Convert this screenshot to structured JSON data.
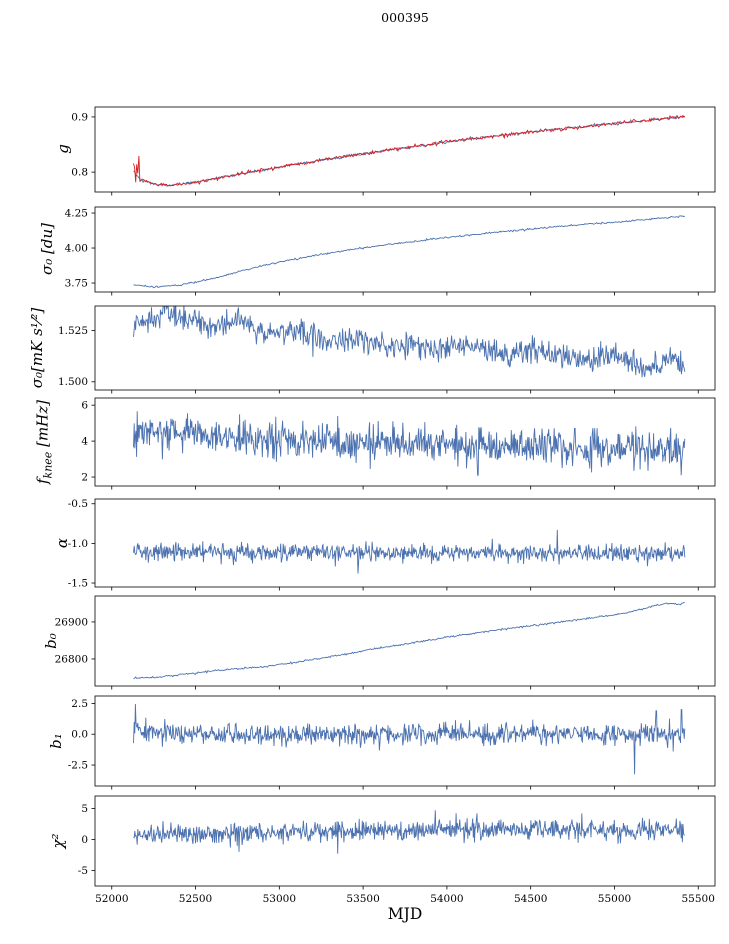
{
  "figure": {
    "title": "000395"
  },
  "x_axis": {
    "label": "MJD",
    "lim": [
      51900,
      55600
    ],
    "tick_vals": [
      52000,
      52500,
      53000,
      53500,
      54000,
      54500,
      55000,
      55500
    ],
    "tick_labels": [
      "52000",
      "52500",
      "53000",
      "53500",
      "54000",
      "54500",
      "55000",
      "55500"
    ]
  },
  "colors": {
    "line": "#4c72b0",
    "fit": "#d62222",
    "axis": "#000000"
  },
  "chart_data": [
    {
      "type": "line",
      "name": "g",
      "ylabel": "g",
      "ylim": [
        0.764,
        0.918
      ],
      "ytick_vals": [
        0.8,
        0.9
      ],
      "ytick_labels": [
        "0.8",
        "0.9"
      ],
      "x_range": [
        52130,
        55420
      ],
      "series": [
        {
          "name": "g-gain",
          "color": "#4c72b0",
          "noise": 0.0012,
          "points": 520,
          "trend": [
            [
              52130,
              0.801
            ],
            [
              52170,
              0.7875
            ],
            [
              52230,
              0.7795
            ],
            [
              52330,
              0.776
            ],
            [
              52480,
              0.7805
            ],
            [
              52650,
              0.7905
            ],
            [
              52850,
              0.801
            ],
            [
              53050,
              0.8115
            ],
            [
              53250,
              0.8215
            ],
            [
              53450,
              0.831
            ],
            [
              53650,
              0.84
            ],
            [
              53850,
              0.8485
            ],
            [
              54050,
              0.8565
            ],
            [
              54250,
              0.864
            ],
            [
              54450,
              0.871
            ],
            [
              54650,
              0.8775
            ],
            [
              54850,
              0.8835
            ],
            [
              55050,
              0.8895
            ],
            [
              55250,
              0.8955
            ],
            [
              55420,
              0.9015
            ]
          ]
        },
        {
          "name": "g-fit",
          "color": "#d62222",
          "noise": 0.0016,
          "points": 520,
          "head": {
            "n": 7,
            "amp": 0.027
          },
          "trend": [
            [
              52130,
              0.801
            ],
            [
              52170,
              0.7875
            ],
            [
              52230,
              0.7795
            ],
            [
              52330,
              0.776
            ],
            [
              52480,
              0.7805
            ],
            [
              52650,
              0.7905
            ],
            [
              52850,
              0.801
            ],
            [
              53050,
              0.8115
            ],
            [
              53250,
              0.8215
            ],
            [
              53450,
              0.831
            ],
            [
              53650,
              0.84
            ],
            [
              53850,
              0.8485
            ],
            [
              54050,
              0.8565
            ],
            [
              54250,
              0.864
            ],
            [
              54450,
              0.871
            ],
            [
              54650,
              0.8775
            ],
            [
              54850,
              0.8835
            ],
            [
              55050,
              0.8895
            ],
            [
              55250,
              0.8955
            ],
            [
              55420,
              0.9015
            ]
          ]
        }
      ]
    },
    {
      "type": "line",
      "name": "sigma0-du",
      "ylabel": "σ₀ [du]",
      "ylim": [
        3.686,
        4.293
      ],
      "ytick_vals": [
        3.75,
        4.0,
        4.25
      ],
      "ytick_labels": [
        "3.75",
        "4.00",
        "4.25"
      ],
      "x_range": [
        52130,
        55420
      ],
      "series": [
        {
          "name": "sigma0-du",
          "color": "#4c72b0",
          "noise": 0.003,
          "points": 520,
          "trend": [
            [
              52130,
              3.737
            ],
            [
              52250,
              3.721
            ],
            [
              52400,
              3.734
            ],
            [
              52600,
              3.78
            ],
            [
              52800,
              3.845
            ],
            [
              53000,
              3.9
            ],
            [
              53250,
              3.955
            ],
            [
              53500,
              4.0
            ],
            [
              53750,
              4.04
            ],
            [
              54000,
              4.075
            ],
            [
              54250,
              4.107
            ],
            [
              54500,
              4.135
            ],
            [
              54750,
              4.162
            ],
            [
              55000,
              4.185
            ],
            [
              55200,
              4.205
            ],
            [
              55350,
              4.222
            ],
            [
              55420,
              4.228
            ]
          ]
        }
      ]
    },
    {
      "type": "line",
      "name": "sigma0-mk",
      "ylabel": "σ₀[mK s¹⁄²]",
      "ylim": [
        1.496,
        1.537
      ],
      "ytick_vals": [
        1.5,
        1.525
      ],
      "ytick_labels": [
        "1.500",
        "1.525"
      ],
      "x_range": [
        52130,
        55420
      ],
      "series": [
        {
          "name": "sigma0-mk",
          "color": "#4c72b0",
          "noise": 0.0032,
          "points": 800,
          "trend": [
            [
              52130,
              1.5265
            ],
            [
              52220,
              1.531
            ],
            [
              52320,
              1.5335
            ],
            [
              52450,
              1.53
            ],
            [
              52600,
              1.5275
            ],
            [
              52750,
              1.53
            ],
            [
              52900,
              1.524
            ],
            [
              53050,
              1.526
            ],
            [
              53200,
              1.5215
            ],
            [
              53350,
              1.519
            ],
            [
              53500,
              1.5215
            ],
            [
              53650,
              1.517
            ],
            [
              53800,
              1.5185
            ],
            [
              53950,
              1.5155
            ],
            [
              54100,
              1.518
            ],
            [
              54250,
              1.5145
            ],
            [
              54400,
              1.5125
            ],
            [
              54550,
              1.5155
            ],
            [
              54700,
              1.512
            ],
            [
              54850,
              1.5095
            ],
            [
              55000,
              1.5135
            ],
            [
              55100,
              1.509
            ],
            [
              55200,
              1.5045
            ],
            [
              55300,
              1.511
            ],
            [
              55420,
              1.5075
            ]
          ]
        }
      ]
    },
    {
      "type": "line",
      "name": "fknee",
      "ylabel": "f_knee [mHz]",
      "ylabel_main": "f",
      "ylabel_sub": "knee",
      "ylabel_unit": " [mHz]",
      "ylim": [
        1.5,
        6.4
      ],
      "ytick_vals": [
        2,
        4,
        6
      ],
      "ytick_labels": [
        "2",
        "4",
        "6"
      ],
      "x_range": [
        52130,
        55420
      ],
      "series": [
        {
          "name": "fknee",
          "color": "#4c72b0",
          "noise": 0.5,
          "points": 900,
          "head": {
            "n": 6,
            "amp": 0.55
          },
          "spikes": [
            [
              54185,
              2.1
            ]
          ],
          "trend": [
            [
              52130,
              4.55
            ],
            [
              52300,
              4.45
            ],
            [
              52550,
              4.35
            ],
            [
              52850,
              4.2
            ],
            [
              53150,
              4.05
            ],
            [
              53450,
              3.95
            ],
            [
              53750,
              3.85
            ],
            [
              54050,
              3.78
            ],
            [
              54350,
              3.72
            ],
            [
              54650,
              3.66
            ],
            [
              54950,
              3.6
            ],
            [
              55200,
              3.55
            ],
            [
              55420,
              3.5
            ]
          ]
        }
      ]
    },
    {
      "type": "line",
      "name": "alpha",
      "ylabel": "α",
      "ylim": [
        -1.55,
        -0.44
      ],
      "ytick_vals": [
        -1.5,
        -1.0,
        -0.5
      ],
      "ytick_labels": [
        "-1.5",
        "-1.0",
        "-0.5"
      ],
      "x_range": [
        52130,
        55420
      ],
      "series": [
        {
          "name": "alpha",
          "color": "#4c72b0",
          "noise": 0.055,
          "points": 900,
          "spikes": [
            [
              54660,
              -0.83
            ],
            [
              53470,
              -1.38
            ]
          ],
          "trend": [
            [
              52130,
              -1.1
            ],
            [
              53000,
              -1.115
            ],
            [
              54200,
              -1.12
            ],
            [
              55420,
              -1.13
            ]
          ]
        }
      ]
    },
    {
      "type": "line",
      "name": "b0",
      "ylabel": "b₀",
      "ylim": [
        26727,
        26970
      ],
      "ytick_vals": [
        26800,
        26900
      ],
      "ytick_labels": [
        "26800",
        "26900"
      ],
      "x_range": [
        52130,
        55420
      ],
      "series": [
        {
          "name": "b0",
          "color": "#4c72b0",
          "noise": 1.2,
          "points": 520,
          "trend": [
            [
              52130,
              26748
            ],
            [
              52300,
              26752
            ],
            [
              52500,
              26762
            ],
            [
              52700,
              26772
            ],
            [
              52900,
              26779
            ],
            [
              53100,
              26791
            ],
            [
              53300,
              26806
            ],
            [
              53500,
              26822
            ],
            [
              53700,
              26836
            ],
            [
              53900,
              26851
            ],
            [
              54100,
              26866
            ],
            [
              54300,
              26878
            ],
            [
              54500,
              26890
            ],
            [
              54700,
              26901
            ],
            [
              54900,
              26913
            ],
            [
              55050,
              26923
            ],
            [
              55150,
              26933
            ],
            [
              55250,
              26945
            ],
            [
              55320,
              26950
            ],
            [
              55380,
              26947
            ],
            [
              55420,
              26951
            ]
          ]
        }
      ]
    },
    {
      "type": "line",
      "name": "b1",
      "ylabel": "b₁",
      "ylim": [
        -4.2,
        3.1
      ],
      "ytick_vals": [
        -2.5,
        0.0,
        2.5
      ],
      "ytick_labels": [
        "-2.5",
        "0.0",
        "2.5"
      ],
      "x_range": [
        52130,
        55420
      ],
      "series": [
        {
          "name": "b1",
          "color": "#4c72b0",
          "noise": 0.42,
          "points": 900,
          "head": {
            "n": 4,
            "amp": 0.9
          },
          "spikes": [
            [
              52140,
              2.45
            ],
            [
              55120,
              -3.25
            ],
            [
              55250,
              1.9
            ],
            [
              55350,
              -1.4
            ],
            [
              55400,
              2.0
            ]
          ],
          "trend": [
            [
              52130,
              0.8
            ],
            [
              52190,
              0.3
            ],
            [
              52300,
              0.05
            ],
            [
              52500,
              0.0
            ],
            [
              55420,
              0.0
            ]
          ]
        }
      ]
    },
    {
      "type": "line",
      "name": "chi2",
      "ylabel": "χ²",
      "ylim": [
        -7.5,
        7.0
      ],
      "ytick_vals": [
        -5,
        0,
        5
      ],
      "ytick_labels": [
        "-5",
        "0",
        "5"
      ],
      "x_range": [
        52130,
        55420
      ],
      "series": [
        {
          "name": "chi2",
          "color": "#4c72b0",
          "noise": 0.8,
          "points": 900,
          "spikes": [
            [
              53930,
              4.7
            ],
            [
              52760,
              -2.0
            ],
            [
              53350,
              -2.3
            ],
            [
              54180,
              4.2
            ],
            [
              55390,
              3.0
            ]
          ],
          "trend": [
            [
              52130,
              0.7
            ],
            [
              52700,
              1.0
            ],
            [
              53300,
              1.3
            ],
            [
              53900,
              1.55
            ],
            [
              54500,
              1.6
            ],
            [
              55000,
              1.5
            ],
            [
              55420,
              1.6
            ]
          ]
        }
      ]
    }
  ]
}
